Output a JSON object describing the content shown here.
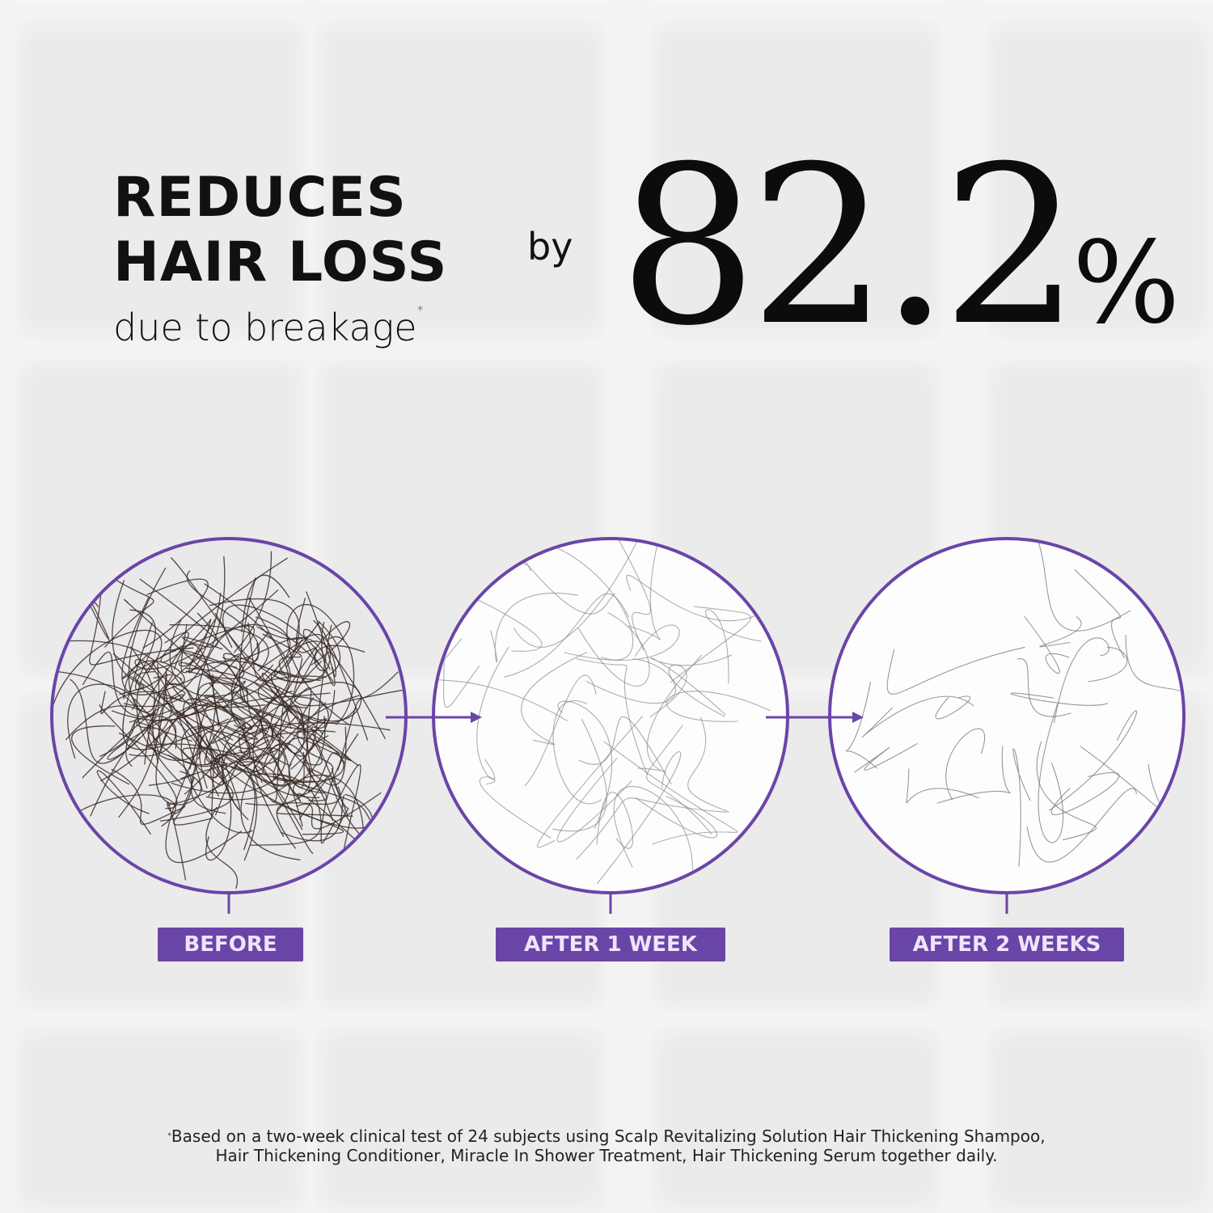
{
  "headline": {
    "line1": "REDUCES",
    "line2": "HAIR LOSS",
    "subline": "due to breakage",
    "asterisk": "*",
    "by": "by",
    "stat": "82.2",
    "stat_unit": "%"
  },
  "stages": [
    {
      "label": "BEFORE",
      "hair_color": "#3a2b26",
      "density": "high"
    },
    {
      "label": "AFTER 1 WEEK",
      "hair_color": "#8a8a90",
      "density": "medium"
    },
    {
      "label": "AFTER 2 WEEKS",
      "hair_color": "#6e6e76",
      "density": "low"
    }
  ],
  "footnote": {
    "asterisk": "*",
    "line1": "Based on a two-week clinical test of 24 subjects using Scalp Revitalizing Solution Hair Thickening Shampoo,",
    "line2": "Hair Thickening Conditioner, Miracle In Shower Treatment, Hair Thickening Serum together daily."
  },
  "colors": {
    "accent": "#6a45a8",
    "label_text": "#efe4fb",
    "tile": "#ecebeb",
    "grout": "#f7f7f7"
  }
}
